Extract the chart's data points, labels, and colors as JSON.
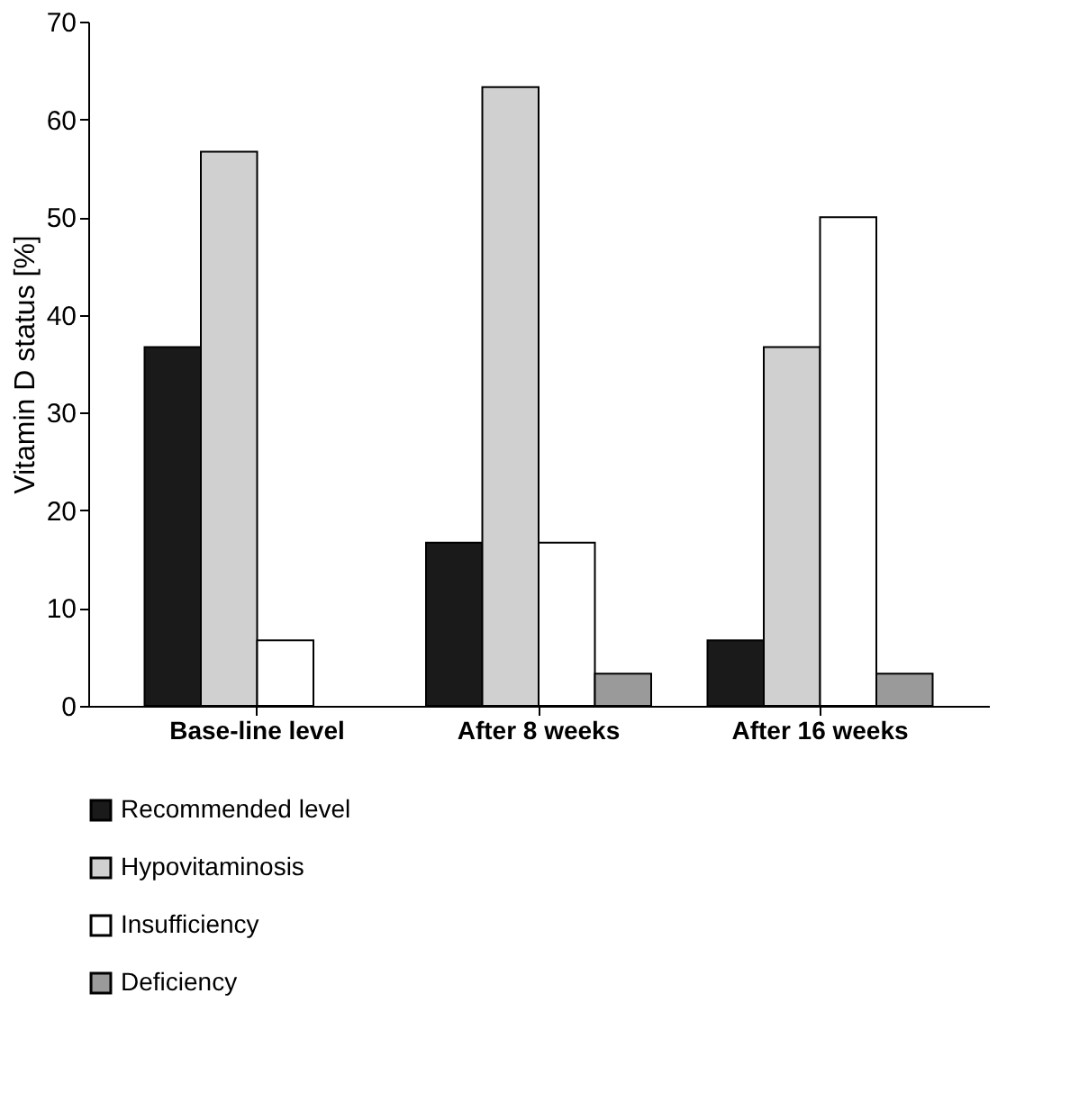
{
  "chart_data": {
    "type": "bar",
    "ylabel": "Vitamin D status [%]",
    "categories": [
      "Base-line level",
      "After 8 weeks",
      "After 16 weeks"
    ],
    "series": [
      {
        "name": "Recommended level",
        "color": "#1a1a1a",
        "values": [
          36.7,
          16.7,
          6.7
        ]
      },
      {
        "name": "Hypovitaminosis",
        "color": "#d0d0d0",
        "values": [
          56.7,
          63.3,
          36.7
        ]
      },
      {
        "name": "Insufficiency",
        "color": "#ffffff",
        "values": [
          6.7,
          16.7,
          50
        ]
      },
      {
        "name": "Deficiency",
        "color": "#9a9a9a",
        "values": [
          null,
          3.3,
          3.3
        ]
      }
    ],
    "ylim": [
      0,
      70
    ],
    "yticks": [
      0,
      10,
      20,
      30,
      40,
      50,
      60,
      70
    ],
    "grid": false,
    "legend": "bottom left"
  }
}
